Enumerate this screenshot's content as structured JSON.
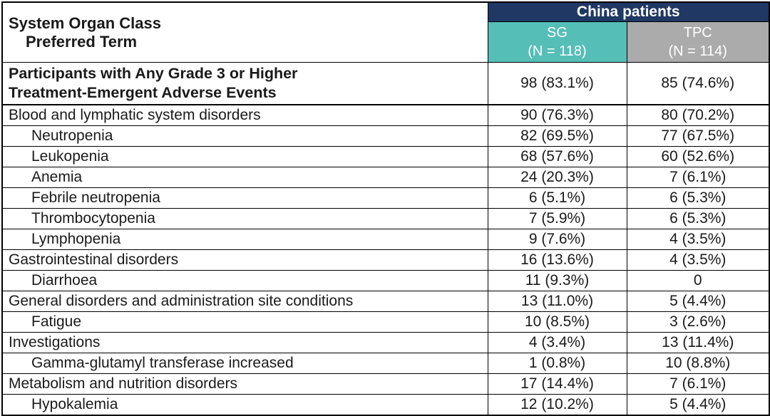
{
  "table": {
    "header": {
      "soc_line1": "System Organ Class",
      "soc_line2": "Preferred Term",
      "group_label": "China patients",
      "arms": [
        {
          "name": "SG",
          "n": "(N = 118)"
        },
        {
          "name": "TPC",
          "n": "(N = 114)"
        }
      ]
    },
    "summary": {
      "label_line1": "Participants with Any Grade 3 or Higher",
      "label_line2": "Treatment-Emergent Adverse Events",
      "sg": "98 (83.1%)",
      "tpc": "85 (74.6%)"
    },
    "rows": [
      {
        "label": "Blood and lymphatic system disorders",
        "indent": false,
        "sg": "90 (76.3%)",
        "tpc": "80 (70.2%)"
      },
      {
        "label": "Neutropenia",
        "indent": true,
        "sg": "82 (69.5%)",
        "tpc": "77 (67.5%)"
      },
      {
        "label": "Leukopenia",
        "indent": true,
        "sg": "68 (57.6%)",
        "tpc": "60 (52.6%)"
      },
      {
        "label": "Anemia",
        "indent": true,
        "sg": "24 (20.3%)",
        "tpc": "7 (6.1%)"
      },
      {
        "label": "Febrile neutropenia",
        "indent": true,
        "sg": "6 (5.1%)",
        "tpc": "6 (5.3%)"
      },
      {
        "label": "Thrombocytopenia",
        "indent": true,
        "sg": "7 (5.9%)",
        "tpc": "6 (5.3%)"
      },
      {
        "label": "Lymphopenia",
        "indent": true,
        "sg": "9 (7.6%)",
        "tpc": "4 (3.5%)"
      },
      {
        "label": "Gastrointestinal disorders",
        "indent": false,
        "sg": "16 (13.6%)",
        "tpc": "4 (3.5%)"
      },
      {
        "label": "Diarrhoea",
        "indent": true,
        "sg": "11 (9.3%)",
        "tpc": "0"
      },
      {
        "label": "General disorders and administration site conditions",
        "indent": false,
        "sg": "13 (11.0%)",
        "tpc": "5 (4.4%)"
      },
      {
        "label": "Fatigue",
        "indent": true,
        "sg": "10 (8.5%)",
        "tpc": "3 (2.6%)"
      },
      {
        "label": "Investigations",
        "indent": false,
        "sg": "4 (3.4%)",
        "tpc": "13 (11.4%)"
      },
      {
        "label": "Gamma-glutamyl transferase increased",
        "indent": true,
        "sg": "1 (0.8%)",
        "tpc": "10 (8.8%)"
      },
      {
        "label": "Metabolism and nutrition disorders",
        "indent": false,
        "sg": "17 (14.4%)",
        "tpc": "7 (6.1%)"
      },
      {
        "label": "Hypokalemia",
        "indent": true,
        "sg": "12 (10.2%)",
        "tpc": "5 (4.4%)"
      }
    ]
  },
  "colors": {
    "group_header_navy": "#1F3864",
    "sg_teal": "#55BEB7",
    "tpc_gray": "#ABABAB",
    "border_black": "#000000",
    "header_text_white": "#FFFFFF"
  },
  "chart_data": {
    "type": "table",
    "title": "Grade 3 or higher treatment-emergent adverse events, China patients",
    "group_header": "China patients",
    "columns": [
      "System Organ Class / Preferred Term",
      "SG (N = 118)",
      "TPC (N = 114)"
    ],
    "rows": [
      [
        "Participants with Any Grade 3 or Higher Treatment-Emergent Adverse Events",
        "98 (83.1%)",
        "85 (74.6%)"
      ],
      [
        "Blood and lymphatic system disorders",
        "90 (76.3%)",
        "80 (70.2%)"
      ],
      [
        "Neutropenia",
        "82 (69.5%)",
        "77 (67.5%)"
      ],
      [
        "Leukopenia",
        "68 (57.6%)",
        "60 (52.6%)"
      ],
      [
        "Anemia",
        "24 (20.3%)",
        "7 (6.1%)"
      ],
      [
        "Febrile neutropenia",
        "6 (5.1%)",
        "6 (5.3%)"
      ],
      [
        "Thrombocytopenia",
        "7 (5.9%)",
        "6 (5.3%)"
      ],
      [
        "Lymphopenia",
        "9 (7.6%)",
        "4 (3.5%)"
      ],
      [
        "Gastrointestinal disorders",
        "16 (13.6%)",
        "4 (3.5%)"
      ],
      [
        "Diarrhoea",
        "11 (9.3%)",
        "0"
      ],
      [
        "General disorders and administration site conditions",
        "13 (11.0%)",
        "5 (4.4%)"
      ],
      [
        "Fatigue",
        "10 (8.5%)",
        "3 (2.6%)"
      ],
      [
        "Investigations",
        "4 (3.4%)",
        "13 (11.4%)"
      ],
      [
        "Gamma-glutamyl transferase increased",
        "1 (0.8%)",
        "10 (8.8%)"
      ],
      [
        "Metabolism and nutrition disorders",
        "17 (14.4%)",
        "7 (6.1%)"
      ],
      [
        "Hypokalemia",
        "12 (10.2%)",
        "5 (4.4%)"
      ]
    ]
  }
}
